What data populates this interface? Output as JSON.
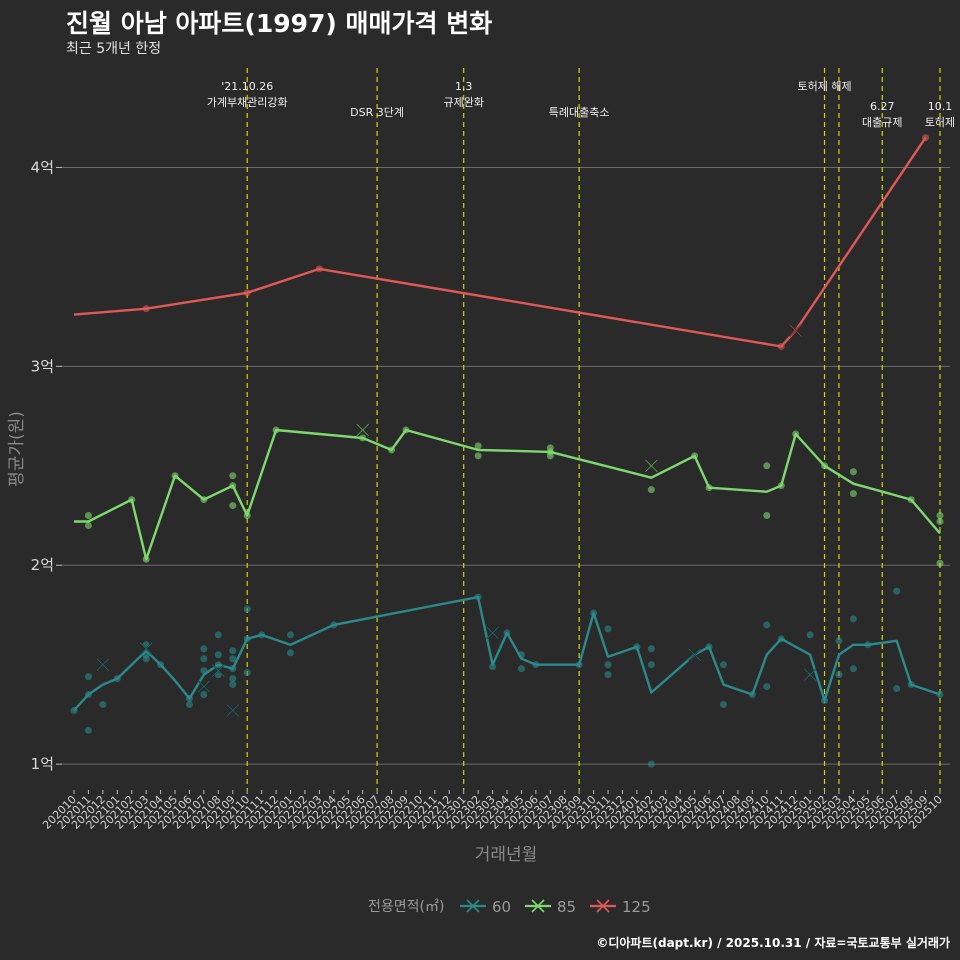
{
  "title": "진월 아남 아파트(1997) 매매가격 변화",
  "subtitle": "최근 5개년 한정",
  "caption": "©디아파트(dapt.kr) / 2025.10.31 / 자료=국토교통부 실거래가",
  "colors": {
    "background": "#2b2a2a",
    "grid": "#6a6a6a",
    "vline": "#d4d400",
    "s60": "#2a8a8c",
    "s85": "#7ed870",
    "s125": "#e05858"
  },
  "chart_data": {
    "type": "line",
    "title": "진월 아남 아파트(1997) 매매가격 변화",
    "xlabel": "거래년월",
    "ylabel": "평균가(원)",
    "ylim": [
      0.87,
      4.5
    ],
    "yticks": [
      1,
      2,
      3,
      4
    ],
    "ytick_labels": [
      "1억",
      "2억",
      "3억",
      "4억"
    ],
    "grid": true,
    "x_months": [
      "202010",
      "202011",
      "202012",
      "202101",
      "202102",
      "202103",
      "202104",
      "202105",
      "202106",
      "202107",
      "202108",
      "202109",
      "202110",
      "202111",
      "202112",
      "202201",
      "202202",
      "202203",
      "202204",
      "202205",
      "202206",
      "202207",
      "202208",
      "202209",
      "202210",
      "202211",
      "202212",
      "202301",
      "202302",
      "202303",
      "202304",
      "202305",
      "202306",
      "202307",
      "202308",
      "202309",
      "202310",
      "202311",
      "202312",
      "202401",
      "202402",
      "202403",
      "202404",
      "202405",
      "202406",
      "202407",
      "202408",
      "202409",
      "202410",
      "202411",
      "202412",
      "202501",
      "202502",
      "202503",
      "202504",
      "202505",
      "202506",
      "202507",
      "202508",
      "202509",
      "202510"
    ],
    "legend": {
      "title": "전용면적(㎡)",
      "position": "bottom",
      "entries": [
        "60",
        "85",
        "125"
      ]
    },
    "series": [
      {
        "name": "60",
        "color": "#2a8a8c",
        "line": [
          [
            0,
            1.27
          ],
          [
            1,
            1.35
          ],
          [
            2,
            1.4
          ],
          [
            3,
            1.43
          ],
          [
            5,
            1.57
          ],
          [
            6,
            1.5
          ],
          [
            7,
            1.42
          ],
          [
            8,
            1.33
          ],
          [
            9,
            1.45
          ],
          [
            10,
            1.5
          ],
          [
            11,
            1.48
          ],
          [
            12,
            1.63
          ],
          [
            13,
            1.65
          ],
          [
            15,
            1.6
          ],
          [
            18,
            1.7
          ],
          [
            28,
            1.84
          ],
          [
            29,
            1.5
          ],
          [
            30,
            1.66
          ],
          [
            31,
            1.53
          ],
          [
            32,
            1.5
          ],
          [
            35,
            1.5
          ],
          [
            36,
            1.76
          ],
          [
            37,
            1.54
          ],
          [
            39,
            1.59
          ],
          [
            40,
            1.36
          ],
          [
            43,
            1.55
          ],
          [
            44,
            1.59
          ],
          [
            45,
            1.4
          ],
          [
            47,
            1.35
          ],
          [
            48,
            1.55
          ],
          [
            49,
            1.63
          ],
          [
            51,
            1.55
          ],
          [
            52,
            1.32
          ],
          [
            53,
            1.55
          ],
          [
            54,
            1.6
          ],
          [
            55,
            1.6
          ],
          [
            57,
            1.62
          ],
          [
            58,
            1.4
          ],
          [
            60,
            1.35
          ]
        ],
        "points": [
          [
            0,
            1.27
          ],
          [
            1,
            1.17
          ],
          [
            1,
            1.35
          ],
          [
            1,
            1.44
          ],
          [
            2,
            1.3
          ],
          [
            3,
            1.43
          ],
          [
            5,
            1.53
          ],
          [
            5,
            1.6
          ],
          [
            5,
            1.55
          ],
          [
            6,
            1.5
          ],
          [
            8,
            1.3
          ],
          [
            8,
            1.33
          ],
          [
            9,
            1.35
          ],
          [
            9,
            1.47
          ],
          [
            9,
            1.53
          ],
          [
            9,
            1.58
          ],
          [
            10,
            1.45
          ],
          [
            10,
            1.5
          ],
          [
            10,
            1.55
          ],
          [
            10,
            1.65
          ],
          [
            11,
            1.4
          ],
          [
            11,
            1.43
          ],
          [
            11,
            1.48
          ],
          [
            11,
            1.53
          ],
          [
            11,
            1.57
          ],
          [
            12,
            1.46
          ],
          [
            12,
            1.63
          ],
          [
            12,
            1.78
          ],
          [
            13,
            1.65
          ],
          [
            15,
            1.56
          ],
          [
            15,
            1.65
          ],
          [
            18,
            1.7
          ],
          [
            28,
            1.84
          ],
          [
            29,
            1.49
          ],
          [
            30,
            1.66
          ],
          [
            31,
            1.48
          ],
          [
            31,
            1.55
          ],
          [
            32,
            1.5
          ],
          [
            35,
            1.5
          ],
          [
            36,
            1.76
          ],
          [
            37,
            1.45
          ],
          [
            37,
            1.5
          ],
          [
            37,
            1.68
          ],
          [
            39,
            1.59
          ],
          [
            40,
            1.0
          ],
          [
            40,
            1.5
          ],
          [
            40,
            1.58
          ],
          [
            44,
            1.59
          ],
          [
            45,
            1.5
          ],
          [
            45,
            1.3
          ],
          [
            47,
            1.35
          ],
          [
            48,
            1.39
          ],
          [
            48,
            1.7
          ],
          [
            49,
            1.63
          ],
          [
            51,
            1.65
          ],
          [
            52,
            1.32
          ],
          [
            53,
            1.45
          ],
          [
            53,
            1.62
          ],
          [
            54,
            1.48
          ],
          [
            54,
            1.73
          ],
          [
            55,
            1.6
          ],
          [
            57,
            1.38
          ],
          [
            57,
            1.87
          ],
          [
            58,
            1.4
          ],
          [
            60,
            1.35
          ]
        ],
        "cancelled": [
          [
            2,
            1.5
          ],
          [
            5,
            1.58
          ],
          [
            9,
            1.39
          ],
          [
            10,
            1.47
          ],
          [
            11,
            1.27
          ],
          [
            29,
            1.66
          ],
          [
            43,
            1.55
          ],
          [
            51,
            1.45
          ]
        ]
      },
      {
        "name": "85",
        "color": "#7ed870",
        "line": [
          [
            0,
            2.22
          ],
          [
            1,
            2.22
          ],
          [
            4,
            2.33
          ],
          [
            5,
            2.03
          ],
          [
            7,
            2.45
          ],
          [
            9,
            2.33
          ],
          [
            11,
            2.4
          ],
          [
            12,
            2.25
          ],
          [
            14,
            2.68
          ],
          [
            20,
            2.64
          ],
          [
            22,
            2.58
          ],
          [
            23,
            2.68
          ],
          [
            28,
            2.58
          ],
          [
            33,
            2.57
          ],
          [
            40,
            2.44
          ],
          [
            43,
            2.55
          ],
          [
            44,
            2.39
          ],
          [
            48,
            2.37
          ],
          [
            49,
            2.4
          ],
          [
            50,
            2.66
          ],
          [
            52,
            2.5
          ],
          [
            54,
            2.41
          ],
          [
            58,
            2.33
          ],
          [
            60,
            2.16
          ]
        ],
        "points": [
          [
            1,
            2.2
          ],
          [
            1,
            2.25
          ],
          [
            4,
            2.33
          ],
          [
            5,
            2.03
          ],
          [
            7,
            2.45
          ],
          [
            9,
            2.33
          ],
          [
            11,
            2.3
          ],
          [
            11,
            2.4
          ],
          [
            11,
            2.45
          ],
          [
            12,
            2.25
          ],
          [
            14,
            2.68
          ],
          [
            20,
            2.64
          ],
          [
            22,
            2.58
          ],
          [
            23,
            2.68
          ],
          [
            28,
            2.55
          ],
          [
            28,
            2.6
          ],
          [
            33,
            2.55
          ],
          [
            33,
            2.57
          ],
          [
            33,
            2.59
          ],
          [
            40,
            2.38
          ],
          [
            43,
            2.55
          ],
          [
            44,
            2.39
          ],
          [
            48,
            2.25
          ],
          [
            48,
            2.5
          ],
          [
            49,
            2.4
          ],
          [
            50,
            2.66
          ],
          [
            52,
            2.5
          ],
          [
            54,
            2.36
          ],
          [
            54,
            2.47
          ],
          [
            58,
            2.33
          ],
          [
            60,
            2.01
          ],
          [
            60,
            2.22
          ],
          [
            60,
            2.25
          ]
        ],
        "cancelled": [
          [
            20,
            2.68
          ],
          [
            40,
            2.5
          ]
        ]
      },
      {
        "name": "125",
        "color": "#e05858",
        "line": [
          [
            0,
            3.26
          ],
          [
            5,
            3.29
          ],
          [
            12,
            3.37
          ],
          [
            17,
            3.49
          ],
          [
            49,
            3.1
          ],
          [
            50,
            3.18
          ],
          [
            59,
            4.15
          ]
        ],
        "points": [
          [
            5,
            3.29
          ],
          [
            12,
            3.37
          ],
          [
            17,
            3.49
          ],
          [
            49,
            3.1
          ],
          [
            59,
            4.15
          ]
        ],
        "cancelled": [
          [
            50,
            3.18
          ]
        ]
      }
    ],
    "events": [
      {
        "x": 12.0,
        "lines": [
          "'21.10.26",
          "가계부채관리강화"
        ],
        "row": 0
      },
      {
        "x": 21.0,
        "lines": [
          "DSR 3단계"
        ],
        "row": 1
      },
      {
        "x": 27.0,
        "lines": [
          "1.3",
          "규제완화"
        ],
        "row": 0
      },
      {
        "x": 35.0,
        "lines": [
          "특례대출축소"
        ],
        "row": 1
      },
      {
        "x": 52.0,
        "lines": [
          "토허제 해제"
        ],
        "row": 0
      },
      {
        "x": 53.0,
        "lines": [],
        "row": 0
      },
      {
        "x": 56.0,
        "lines": [
          "6.27",
          "대출규제"
        ],
        "row": 2
      },
      {
        "x": 60.0,
        "lines": [
          "10.1",
          "토허제"
        ],
        "row": 2
      }
    ]
  }
}
